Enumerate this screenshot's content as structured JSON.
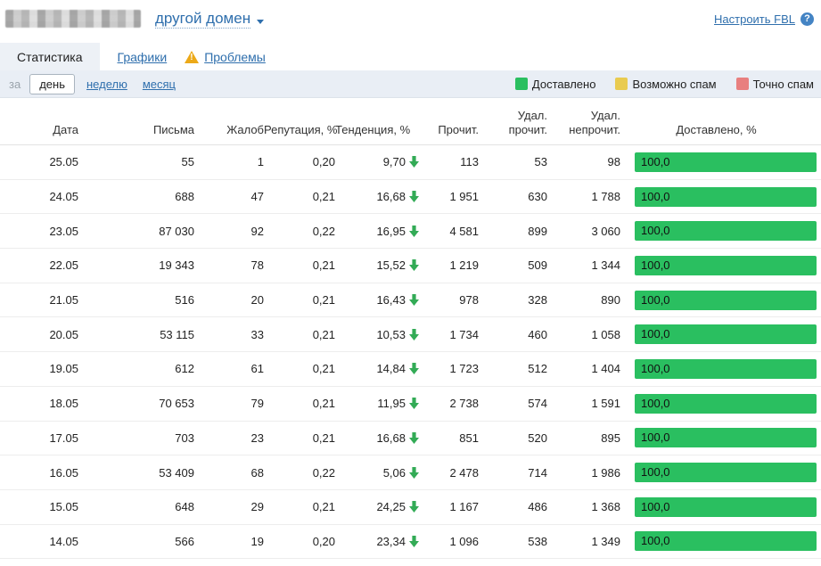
{
  "header": {
    "domain_selector_label": "другой домен",
    "configure_fbl_label": "Настроить FBL",
    "help_icon_glyph": "?"
  },
  "tabs": {
    "statistics": "Статистика",
    "charts": "Графики",
    "problems": "Проблемы"
  },
  "period_filter": {
    "prefix": "за",
    "day": "день",
    "week": "неделю",
    "month": "месяц",
    "selected": "день"
  },
  "legend": [
    {
      "label": "Доставлено",
      "color": "#2abf60"
    },
    {
      "label": "Возможно спам",
      "color": "#e9cb50"
    },
    {
      "label": "Точно спам",
      "color": "#e87f7f"
    }
  ],
  "colors": {
    "delivered_green": "#2abf60",
    "trend_arrow_green": "#33ab56",
    "link_blue": "#2f6fad"
  },
  "table": {
    "columns": {
      "date": "Дата",
      "letters": "Письма",
      "complaints": "Жалоб",
      "reputation": "Репутация, %",
      "trend": "Тенденция, %",
      "read": "Прочит.",
      "deleted_read": "Удал. прочит.",
      "deleted_unread": "Удал. непрочит.",
      "delivered": "Доставлено, %"
    },
    "rows": [
      {
        "date": "25.05",
        "letters": "55",
        "complaints": "1",
        "reputation": "0,20",
        "trend": "9,70",
        "trend_direction": "down",
        "read": "113",
        "deleted_read": "53",
        "deleted_unread": "98",
        "delivered": "100,0",
        "delivered_pct": 100
      },
      {
        "date": "24.05",
        "letters": "688",
        "complaints": "47",
        "reputation": "0,21",
        "trend": "16,68",
        "trend_direction": "down",
        "read": "1 951",
        "deleted_read": "630",
        "deleted_unread": "1 788",
        "delivered": "100,0",
        "delivered_pct": 100
      },
      {
        "date": "23.05",
        "letters": "87 030",
        "complaints": "92",
        "reputation": "0,22",
        "trend": "16,95",
        "trend_direction": "down",
        "read": "4 581",
        "deleted_read": "899",
        "deleted_unread": "3 060",
        "delivered": "100,0",
        "delivered_pct": 100
      },
      {
        "date": "22.05",
        "letters": "19 343",
        "complaints": "78",
        "reputation": "0,21",
        "trend": "15,52",
        "trend_direction": "down",
        "read": "1 219",
        "deleted_read": "509",
        "deleted_unread": "1 344",
        "delivered": "100,0",
        "delivered_pct": 100
      },
      {
        "date": "21.05",
        "letters": "516",
        "complaints": "20",
        "reputation": "0,21",
        "trend": "16,43",
        "trend_direction": "down",
        "read": "978",
        "deleted_read": "328",
        "deleted_unread": "890",
        "delivered": "100,0",
        "delivered_pct": 100
      },
      {
        "date": "20.05",
        "letters": "53 115",
        "complaints": "33",
        "reputation": "0,21",
        "trend": "10,53",
        "trend_direction": "down",
        "read": "1 734",
        "deleted_read": "460",
        "deleted_unread": "1 058",
        "delivered": "100,0",
        "delivered_pct": 100
      },
      {
        "date": "19.05",
        "letters": "612",
        "complaints": "61",
        "reputation": "0,21",
        "trend": "14,84",
        "trend_direction": "down",
        "read": "1 723",
        "deleted_read": "512",
        "deleted_unread": "1 404",
        "delivered": "100,0",
        "delivered_pct": 100
      },
      {
        "date": "18.05",
        "letters": "70 653",
        "complaints": "79",
        "reputation": "0,21",
        "trend": "11,95",
        "trend_direction": "down",
        "read": "2 738",
        "deleted_read": "574",
        "deleted_unread": "1 591",
        "delivered": "100,0",
        "delivered_pct": 100
      },
      {
        "date": "17.05",
        "letters": "703",
        "complaints": "23",
        "reputation": "0,21",
        "trend": "16,68",
        "trend_direction": "down",
        "read": "851",
        "deleted_read": "520",
        "deleted_unread": "895",
        "delivered": "100,0",
        "delivered_pct": 100
      },
      {
        "date": "16.05",
        "letters": "53 409",
        "complaints": "68",
        "reputation": "0,22",
        "trend": "5,06",
        "trend_direction": "down",
        "read": "2 478",
        "deleted_read": "714",
        "deleted_unread": "1 986",
        "delivered": "100,0",
        "delivered_pct": 100
      },
      {
        "date": "15.05",
        "letters": "648",
        "complaints": "29",
        "reputation": "0,21",
        "trend": "24,25",
        "trend_direction": "down",
        "read": "1 167",
        "deleted_read": "486",
        "deleted_unread": "1 368",
        "delivered": "100,0",
        "delivered_pct": 100
      },
      {
        "date": "14.05",
        "letters": "566",
        "complaints": "19",
        "reputation": "0,20",
        "trend": "23,34",
        "trend_direction": "down",
        "read": "1 096",
        "deleted_read": "538",
        "deleted_unread": "1 349",
        "delivered": "100,0",
        "delivered_pct": 100
      }
    ]
  }
}
